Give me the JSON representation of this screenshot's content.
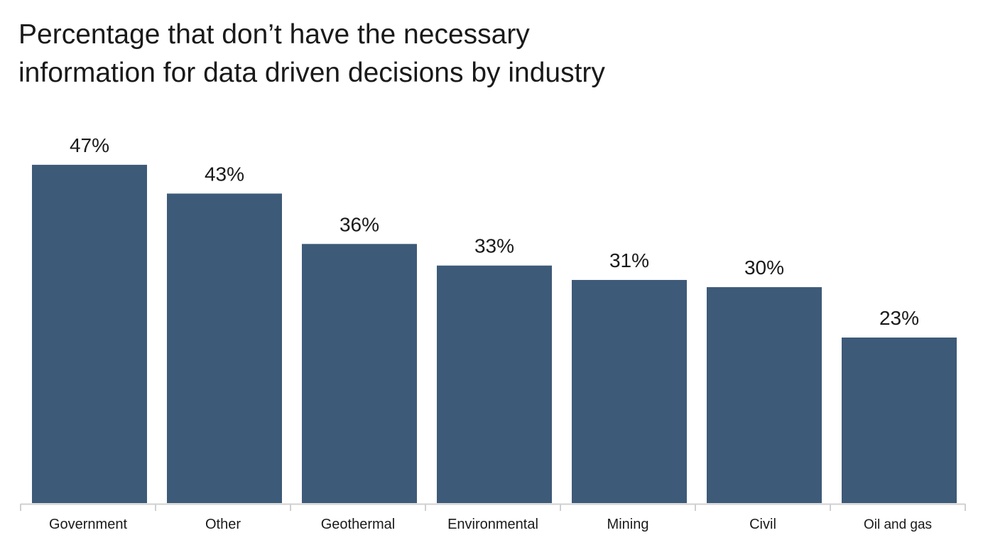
{
  "chart_data": {
    "type": "bar",
    "title_lines": [
      "Percentage that don’t have the necessary",
      "information for data driven decisions by industry"
    ],
    "categories": [
      "Government",
      "Other",
      "Geothermal",
      "Environmental",
      "Mining",
      "Civil",
      "Oil and gas"
    ],
    "values": [
      47,
      43,
      36,
      33,
      31,
      30,
      23
    ],
    "data_labels": [
      "47%",
      "43%",
      "36%",
      "33%",
      "31%",
      "30%",
      "23%"
    ],
    "xlabel": "",
    "ylabel": "",
    "ylim": [
      0,
      50
    ],
    "grid": false,
    "legend": "none",
    "bar_color": "#3d5a78",
    "axis_color": "#d0d0d0"
  }
}
